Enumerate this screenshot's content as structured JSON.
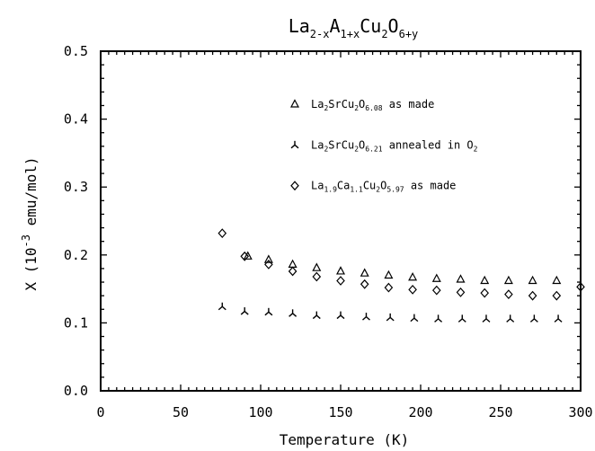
{
  "chart_data": {
    "type": "scatter",
    "title": "La2-xA1+xCu2O6+y",
    "title_parts": [
      {
        "t": "La",
        "s": ""
      },
      {
        "t": "2-x",
        "s": "sub"
      },
      {
        "t": "A",
        "s": ""
      },
      {
        "t": "1+x",
        "s": "sub"
      },
      {
        "t": "Cu",
        "s": ""
      },
      {
        "t": "2",
        "s": "sub"
      },
      {
        "t": "O",
        "s": ""
      },
      {
        "t": "6+y",
        "s": "sub"
      }
    ],
    "xlabel": "Temperature (K)",
    "ylabel": "X (10-3 emu/mol)",
    "ylabel_parts": [
      {
        "t": "X (10",
        "s": ""
      },
      {
        "t": "-3",
        "s": "sup"
      },
      {
        "t": " emu/mol)",
        "s": ""
      }
    ],
    "xlim": [
      0,
      300
    ],
    "ylim": [
      0.0,
      0.5
    ],
    "x_ticks": [
      {
        "v": 0,
        "label": "0"
      },
      {
        "v": 50,
        "label": "50"
      },
      {
        "v": 100,
        "label": "100"
      },
      {
        "v": 150,
        "label": "150"
      },
      {
        "v": 200,
        "label": "200"
      },
      {
        "v": 250,
        "label": "250"
      },
      {
        "v": 300,
        "label": "300"
      }
    ],
    "y_ticks": [
      {
        "v": 0.0,
        "label": "0.0"
      },
      {
        "v": 0.1,
        "label": "0.1"
      },
      {
        "v": 0.2,
        "label": "0.2"
      },
      {
        "v": 0.3,
        "label": "0.3"
      },
      {
        "v": 0.4,
        "label": "0.4"
      },
      {
        "v": 0.5,
        "label": "0.5"
      }
    ],
    "grid": false,
    "legend_position": "upper-right",
    "series": [
      {
        "name": "La2SrCu2O6.08 as made",
        "legend_parts": [
          {
            "t": "La",
            "s": ""
          },
          {
            "t": "2",
            "s": "sub"
          },
          {
            "t": "SrCu",
            "s": ""
          },
          {
            "t": "2",
            "s": "sub"
          },
          {
            "t": "O",
            "s": ""
          },
          {
            "t": "6.08",
            "s": "sub"
          },
          {
            "t": " as made",
            "s": ""
          }
        ],
        "marker": "triangle",
        "x": [
          92,
          105,
          120,
          135,
          150,
          165,
          180,
          195,
          210,
          225,
          240,
          255,
          270,
          285
        ],
        "y": [
          0.198,
          0.193,
          0.186,
          0.181,
          0.176,
          0.173,
          0.17,
          0.167,
          0.165,
          0.164,
          0.162,
          0.162,
          0.162,
          0.162
        ]
      },
      {
        "name": "La2SrCu2O6.21 annealed in O2",
        "legend_parts": [
          {
            "t": "La",
            "s": ""
          },
          {
            "t": "2",
            "s": "sub"
          },
          {
            "t": "SrCu",
            "s": ""
          },
          {
            "t": "2",
            "s": "sub"
          },
          {
            "t": "O",
            "s": ""
          },
          {
            "t": "6.21",
            "s": "sub"
          },
          {
            "t": " annealed in O",
            "s": ""
          },
          {
            "t": "2",
            "s": "sub"
          }
        ],
        "marker": "tripod",
        "x": [
          76,
          90,
          105,
          120,
          135,
          150,
          166,
          181,
          196,
          211,
          226,
          241,
          256,
          271,
          286
        ],
        "y": [
          0.124,
          0.117,
          0.116,
          0.114,
          0.111,
          0.111,
          0.109,
          0.108,
          0.107,
          0.106,
          0.106,
          0.106,
          0.106,
          0.106,
          0.106
        ]
      },
      {
        "name": "La1.9Ca1.1Cu2O5.97 as made",
        "legend_parts": [
          {
            "t": "La",
            "s": ""
          },
          {
            "t": "1.9",
            "s": "sub"
          },
          {
            "t": "Ca",
            "s": ""
          },
          {
            "t": "1.1",
            "s": "sub"
          },
          {
            "t": "Cu",
            "s": ""
          },
          {
            "t": "2",
            "s": "sub"
          },
          {
            "t": "O",
            "s": ""
          },
          {
            "t": "5.97",
            "s": "sub"
          },
          {
            "t": " as made",
            "s": ""
          }
        ],
        "marker": "diamond",
        "x": [
          76,
          90,
          105,
          120,
          135,
          150,
          165,
          180,
          195,
          210,
          225,
          240,
          255,
          270,
          285,
          300
        ],
        "y": [
          0.232,
          0.198,
          0.186,
          0.176,
          0.168,
          0.162,
          0.157,
          0.152,
          0.149,
          0.148,
          0.145,
          0.144,
          0.142,
          0.14,
          0.14,
          0.153
        ]
      }
    ]
  }
}
